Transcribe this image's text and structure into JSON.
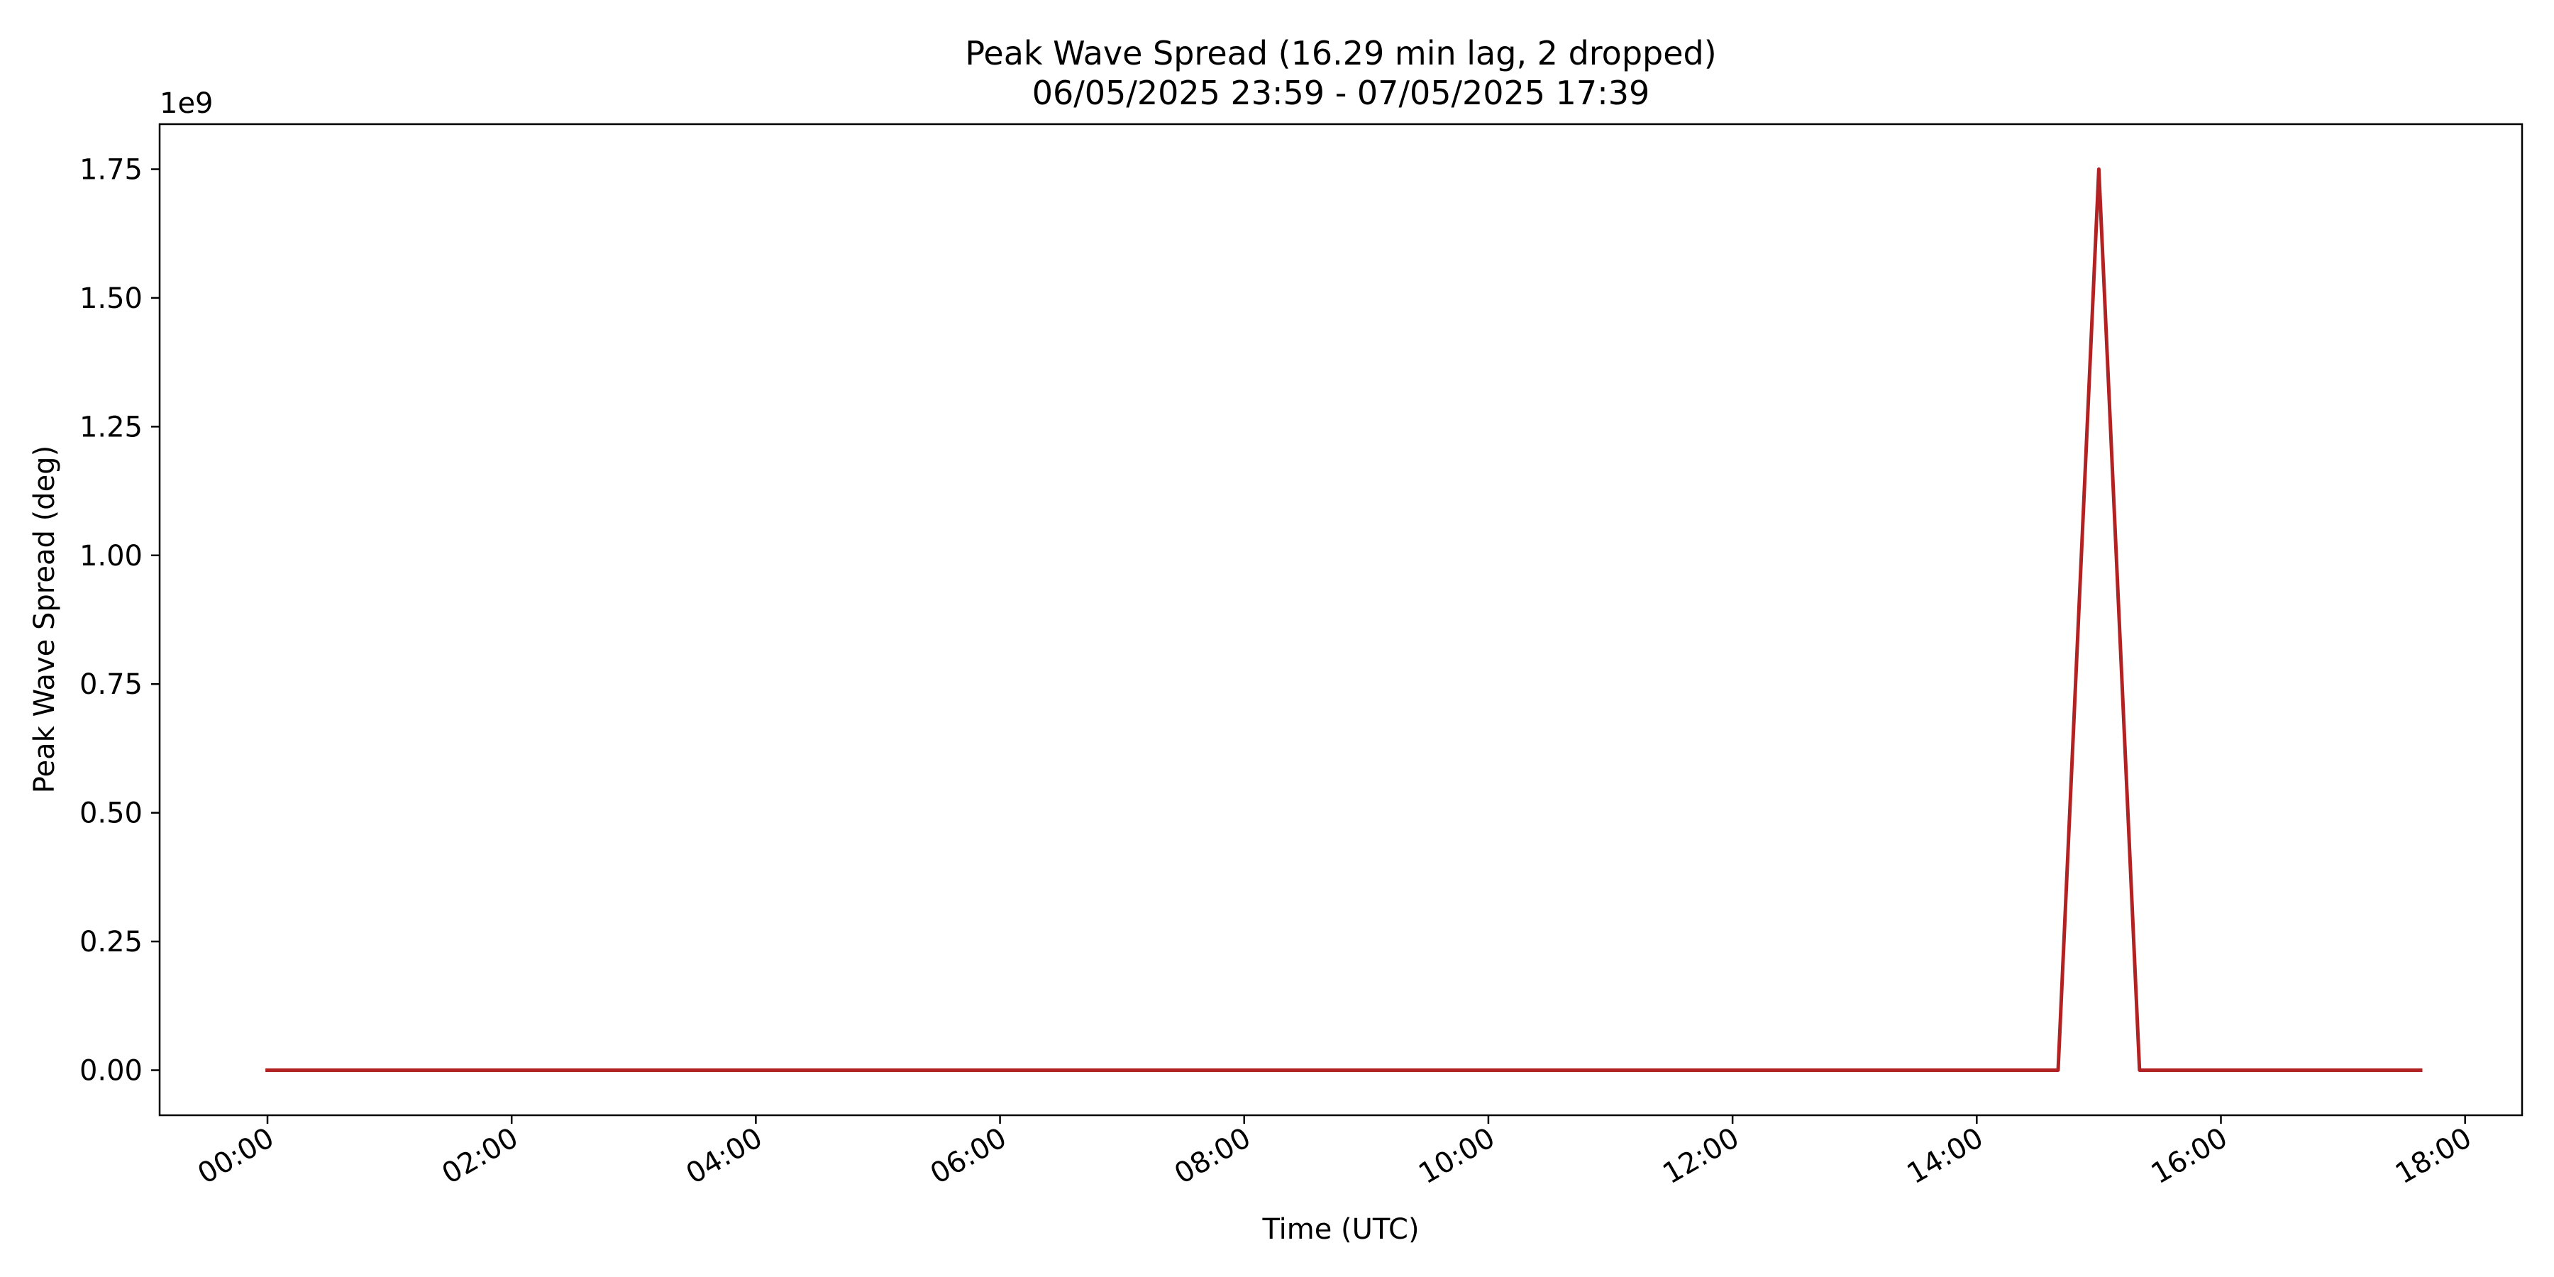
{
  "chart_data": {
    "type": "line",
    "title": "Peak Wave Spread (16.29 min lag, 2 dropped)",
    "subtitle": "06/05/2025 23:59 - 07/05/2025 17:39",
    "xlabel": "Time (UTC)",
    "ylabel": "Peak Wave Spread (deg)",
    "y_offset_label": "1e9",
    "y_multiplier": 1000000000,
    "grid": false,
    "legend": "none",
    "color": "#b22222",
    "x_axis": {
      "type": "time",
      "range": [
        "2025-05-06 23:07",
        "2025-05-07 18:28"
      ],
      "ticks": [
        {
          "value": "2025-05-07 00:00",
          "label": "00:00"
        },
        {
          "value": "2025-05-07 02:00",
          "label": "02:00"
        },
        {
          "value": "2025-05-07 04:00",
          "label": "04:00"
        },
        {
          "value": "2025-05-07 06:00",
          "label": "06:00"
        },
        {
          "value": "2025-05-07 08:00",
          "label": "08:00"
        },
        {
          "value": "2025-05-07 10:00",
          "label": "10:00"
        },
        {
          "value": "2025-05-07 12:00",
          "label": "12:00"
        },
        {
          "value": "2025-05-07 14:00",
          "label": "14:00"
        },
        {
          "value": "2025-05-07 16:00",
          "label": "16:00"
        },
        {
          "value": "2025-05-07 18:00",
          "label": "18:00"
        }
      ]
    },
    "y_axis": {
      "range": [
        -0.0875,
        1.8375
      ],
      "ticks": [
        {
          "value": 0.0,
          "label": "0.00"
        },
        {
          "value": 0.25,
          "label": "0.25"
        },
        {
          "value": 0.5,
          "label": "0.50"
        },
        {
          "value": 0.75,
          "label": "0.75"
        },
        {
          "value": 1.0,
          "label": "1.00"
        },
        {
          "value": 1.25,
          "label": "1.25"
        },
        {
          "value": 1.5,
          "label": "1.50"
        },
        {
          "value": 1.75,
          "label": "1.75"
        }
      ]
    },
    "series": [
      {
        "points": [
          {
            "x": "2025-05-06 23:59",
            "y": 0.0
          },
          {
            "x": "2025-05-07 14:40",
            "y": 0.0
          },
          {
            "x": "2025-05-07 15:00",
            "y": 1.75
          },
          {
            "x": "2025-05-07 15:20",
            "y": 0.0
          },
          {
            "x": "2025-05-07 17:39",
            "y": 0.0
          }
        ]
      }
    ]
  }
}
